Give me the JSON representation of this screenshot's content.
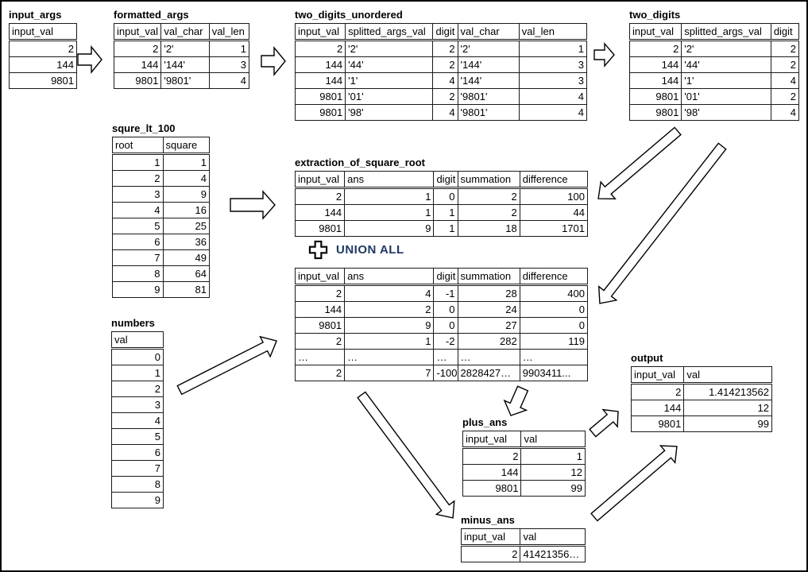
{
  "union_badge": {
    "label": "UNION ALL",
    "color": "#1f3864",
    "icon": "plus-cross-icon"
  },
  "tables": {
    "input_args": {
      "title": "input_args",
      "columns": [
        "input_val"
      ],
      "rows": [
        [
          "2"
        ],
        [
          "144"
        ],
        [
          "9801"
        ]
      ]
    },
    "formatted_args": {
      "title": "formatted_args",
      "columns": [
        "input_val",
        "val_char",
        "val_len"
      ],
      "rows": [
        [
          "2",
          "'2'",
          "1"
        ],
        [
          "144",
          "'144'",
          "3"
        ],
        [
          "9801",
          "'9801'",
          "4"
        ]
      ]
    },
    "two_digits_unordered": {
      "title": "two_digits_unordered",
      "columns": [
        "input_val",
        "splitted_args_val",
        "digit",
        "val_char",
        "val_len"
      ],
      "rows": [
        [
          "2",
          "'2'",
          "2",
          "'2'",
          "1"
        ],
        [
          "144",
          "'44'",
          "2",
          "'144'",
          "3"
        ],
        [
          "144",
          "'1'",
          "4",
          "'144'",
          "3"
        ],
        [
          "9801",
          "'01'",
          "2",
          "'9801'",
          "4"
        ],
        [
          "9801",
          "'98'",
          "4",
          "'9801'",
          "4"
        ]
      ]
    },
    "two_digits": {
      "title": "two_digits",
      "columns": [
        "input_val",
        "splitted_args_val",
        "digit"
      ],
      "rows": [
        [
          "2",
          "'2'",
          "2"
        ],
        [
          "144",
          "'44'",
          "2"
        ],
        [
          "144",
          "'1'",
          "4"
        ],
        [
          "9801",
          "'01'",
          "2"
        ],
        [
          "9801",
          "'98'",
          "4"
        ]
      ]
    },
    "squre_lt_100": {
      "title": "squre_lt_100",
      "columns": [
        "root",
        "square"
      ],
      "rows": [
        [
          "1",
          "1"
        ],
        [
          "2",
          "4"
        ],
        [
          "3",
          "9"
        ],
        [
          "4",
          "16"
        ],
        [
          "5",
          "25"
        ],
        [
          "6",
          "36"
        ],
        [
          "7",
          "49"
        ],
        [
          "8",
          "64"
        ],
        [
          "9",
          "81"
        ]
      ]
    },
    "extraction_of_square_root": {
      "title": "extraction_of_square_root",
      "columns": [
        "input_val",
        "ans",
        "digit",
        "summation",
        "difference"
      ],
      "rows": [
        [
          "2",
          "1",
          "0",
          "2",
          "100"
        ],
        [
          "144",
          "1",
          "1",
          "2",
          "44"
        ],
        [
          "9801",
          "9",
          "1",
          "18",
          "1701"
        ]
      ]
    },
    "union_result": {
      "title": "",
      "columns": [
        "input_val",
        "ans",
        "digit",
        "summation",
        "difference"
      ],
      "rows": [
        [
          "2",
          "4",
          "-1",
          "28",
          "400"
        ],
        [
          "144",
          "2",
          "0",
          "24",
          "0"
        ],
        [
          "9801",
          "9",
          "0",
          "27",
          "0"
        ],
        [
          "2",
          "1",
          "-2",
          "282",
          "119"
        ],
        [
          "…",
          "…",
          "…",
          "…",
          "…"
        ],
        [
          "2",
          "7",
          "-100",
          "2828427…",
          "9903411..."
        ]
      ]
    },
    "numbers": {
      "title": "numbers",
      "columns": [
        "val"
      ],
      "rows": [
        [
          "0"
        ],
        [
          "1"
        ],
        [
          "2"
        ],
        [
          "3"
        ],
        [
          "4"
        ],
        [
          "5"
        ],
        [
          "6"
        ],
        [
          "7"
        ],
        [
          "8"
        ],
        [
          "9"
        ]
      ]
    },
    "plus_ans": {
      "title": "plus_ans",
      "columns": [
        "input_val",
        "val"
      ],
      "rows": [
        [
          "2",
          "1"
        ],
        [
          "144",
          "12"
        ],
        [
          "9801",
          "99"
        ]
      ]
    },
    "minus_ans": {
      "title": "minus_ans",
      "columns": [
        "input_val",
        "val"
      ],
      "rows": [
        [
          "2",
          "41421356…"
        ]
      ]
    },
    "output": {
      "title": "output",
      "columns": [
        "input_val",
        "val"
      ],
      "rows": [
        [
          "2",
          "1.414213562"
        ],
        [
          "144",
          "12"
        ],
        [
          "9801",
          "99"
        ]
      ]
    }
  },
  "arrows": [
    {
      "name": "input-args-to-formatted-args"
    },
    {
      "name": "formatted-args-to-two-digits-unordered"
    },
    {
      "name": "two-digits-unordered-to-two-digits"
    },
    {
      "name": "squre-lt-100-to-extraction"
    },
    {
      "name": "two-digits-to-extraction"
    },
    {
      "name": "two-digits-to-union"
    },
    {
      "name": "numbers-to-union"
    },
    {
      "name": "union-to-plus-ans"
    },
    {
      "name": "union-to-minus-ans"
    },
    {
      "name": "plus-ans-to-output"
    },
    {
      "name": "minus-ans-to-output"
    }
  ]
}
